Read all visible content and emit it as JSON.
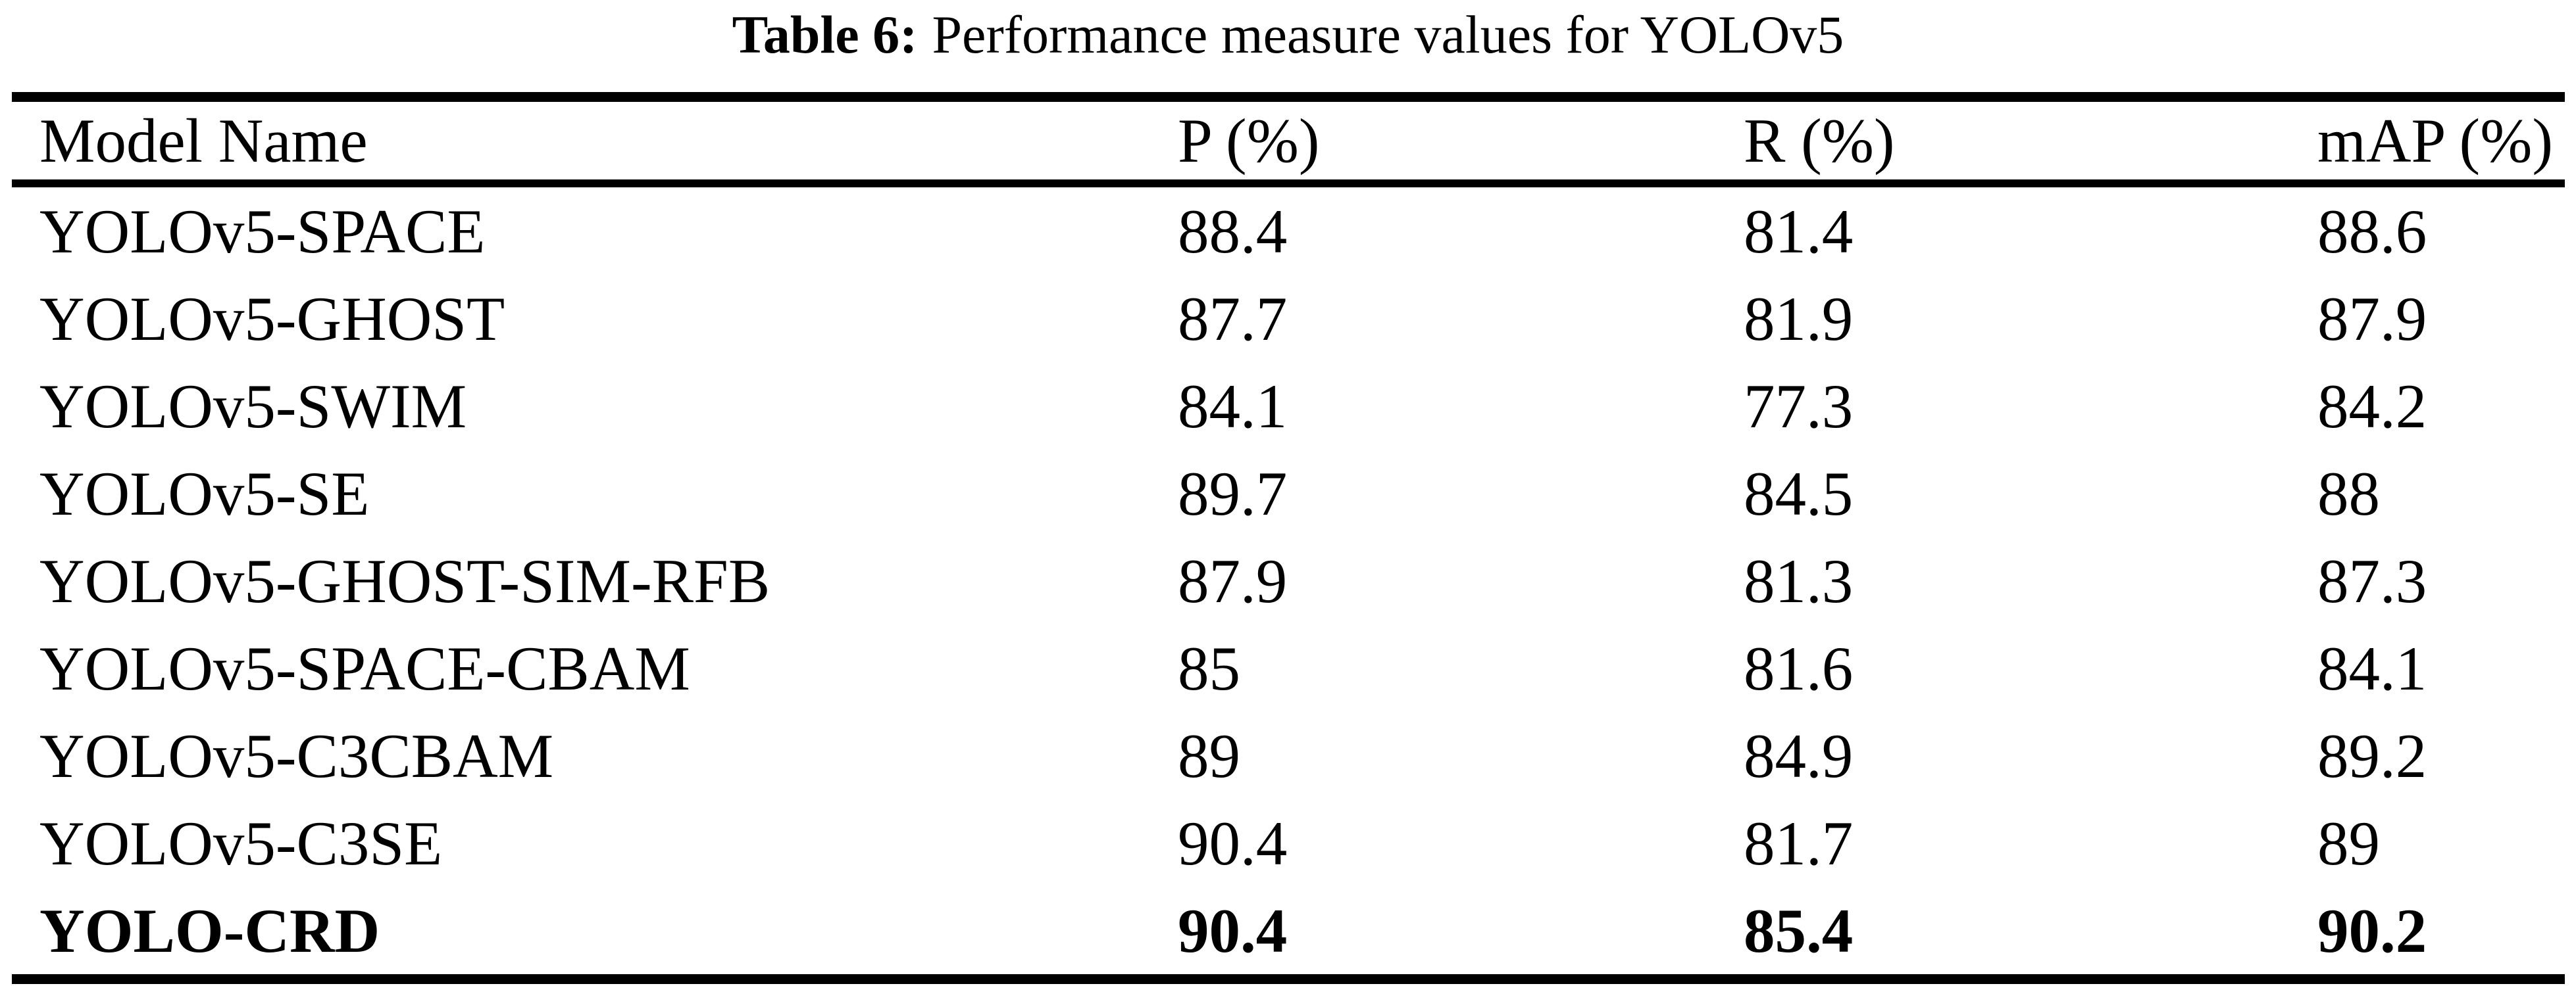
{
  "caption": {
    "label": "Table 6:",
    "text": "Performance measure values for YOLOv5"
  },
  "table": {
    "columns": [
      "Model Name",
      "P (%)",
      "R (%)",
      "mAP (%)"
    ],
    "rows": [
      {
        "model": "YOLOv5-SPACE",
        "p": "88.4",
        "r": "81.4",
        "map": "88.6"
      },
      {
        "model": "YOLOv5-GHOST",
        "p": "87.7",
        "r": "81.9",
        "map": "87.9"
      },
      {
        "model": "YOLOv5-SWIM",
        "p": "84.1",
        "r": "77.3",
        "map": "84.2"
      },
      {
        "model": "YOLOv5-SE",
        "p": "89.7",
        "r": "84.5",
        "map": "88"
      },
      {
        "model": "YOLOv5-GHOST-SIM-RFB",
        "p": "87.9",
        "r": "81.3",
        "map": "87.3"
      },
      {
        "model": "YOLOv5-SPACE-CBAM",
        "p": "85",
        "r": "81.6",
        "map": "84.1"
      },
      {
        "model": "YOLOv5-C3CBAM",
        "p": "89",
        "r": "84.9",
        "map": "89.2"
      },
      {
        "model": "YOLOv5-C3SE",
        "p": "90.4",
        "r": "81.7",
        "map": "89"
      },
      {
        "model": "YOLO-CRD",
        "p": "90.4",
        "r": "85.4",
        "map": "90.2"
      }
    ]
  },
  "colors": {
    "text": "#000000",
    "background": "#ffffff",
    "rule": "#000000"
  }
}
